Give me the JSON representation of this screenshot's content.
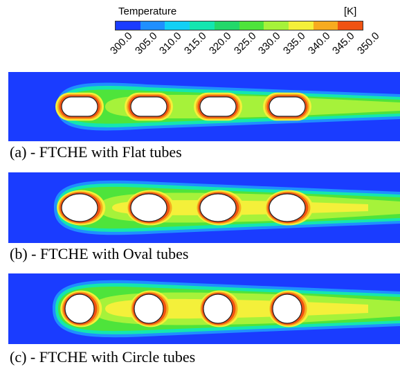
{
  "legend": {
    "title": "Temperature",
    "unit": "[K]",
    "ticks": [
      "300.0",
      "305.0",
      "310.0",
      "315.0",
      "320.0",
      "325.0",
      "330.0",
      "335.0",
      "340.0",
      "345.0",
      "350.0"
    ],
    "colors": [
      "#1a3cff",
      "#1f8fff",
      "#12d0f5",
      "#14e6b0",
      "#23d86a",
      "#4ee43b",
      "#a6f23a",
      "#f4f03a",
      "#f7ab1f",
      "#f05312"
    ]
  },
  "panels": [
    {
      "caption": "(a) - FTCHE with Flat tubes",
      "tube_shape": "flat"
    },
    {
      "caption": "(b) - FTCHE with Oval tubes",
      "tube_shape": "oval"
    },
    {
      "caption": "(c) - FTCHE with Circle tubes",
      "tube_shape": "circle"
    }
  ]
}
